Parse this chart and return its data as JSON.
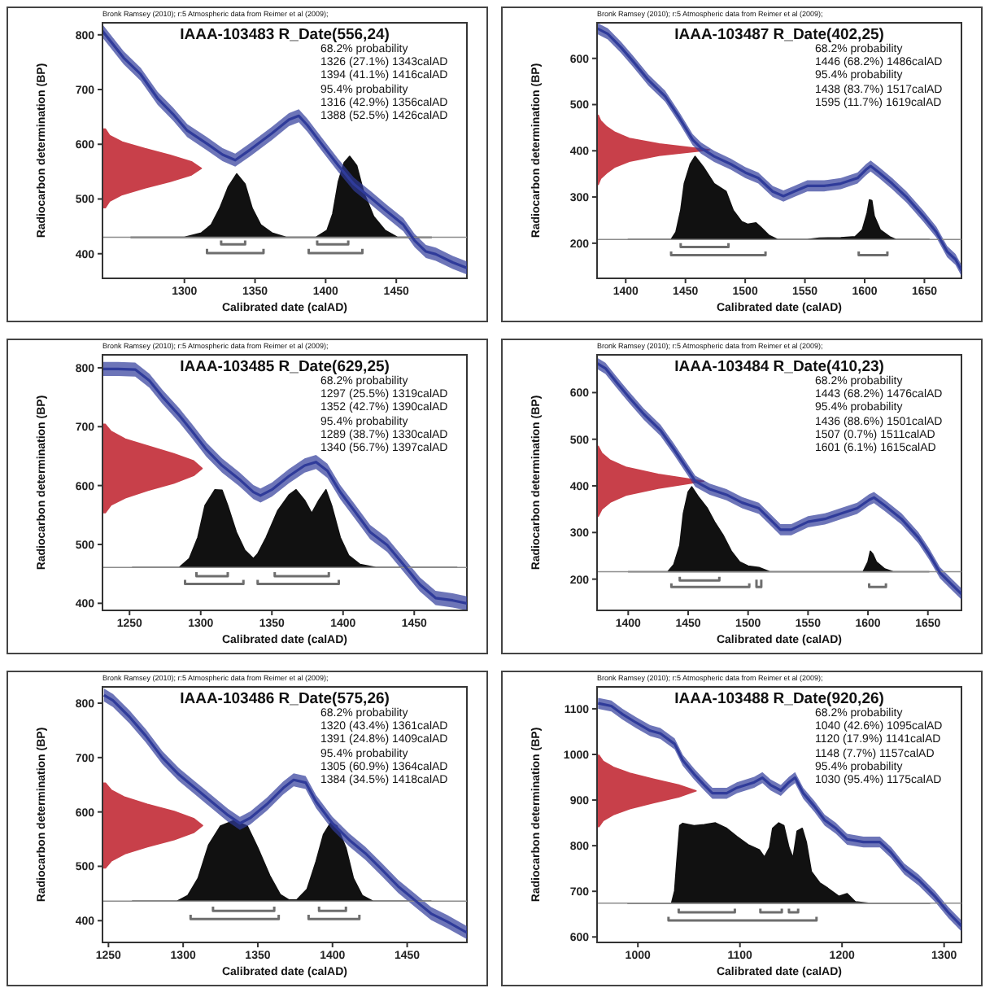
{
  "chart_data": [
    {
      "type": "line",
      "title": "IAAA-103483 R_Date(556,24)",
      "xlabel": "Calibrated date (calAD)",
      "ylabel": "Radiocarbon determination (BP)",
      "xlim": [
        1242,
        1500
      ],
      "xticks": [
        1300,
        1350,
        1400,
        1450
      ],
      "ylim": [
        355,
        822
      ],
      "yticks": [
        400,
        500,
        600,
        700,
        800
      ],
      "annotations": [
        "Bronk Ramsey (2010); r:5 Atmospheric data from Reimer et al (2009);",
        "68.2% probability",
        "1326 (27.1%) 1343calAD",
        "1394 (41.1%) 1416calAD",
        "95.4% probability",
        "1316 (42.9%) 1356calAD",
        "1388 (52.5%) 1426calAD"
      ],
      "ref_lines": [
        {
          "axis": "y",
          "value": 430,
          "color": "#8c8c8c"
        }
      ],
      "series": [
        {
          "type": "area",
          "color": "#c8404a",
          "x": [
            1242,
            1244,
            1247,
            1256,
            1272,
            1290,
            1305,
            1312,
            1305,
            1290,
            1272,
            1256,
            1247,
            1244,
            1242
          ],
          "values": [
            484,
            484,
            496,
            508,
            520,
            532,
            544,
            556,
            568,
            580,
            592,
            604,
            616,
            628,
            628
          ]
        },
        {
          "type": "area",
          "color": "#111111",
          "x": [
            1262,
            1300,
            1312,
            1319,
            1325,
            1331,
            1337,
            1343,
            1348,
            1354,
            1362,
            1372,
            1393,
            1401,
            1405,
            1409,
            1413,
            1417,
            1422,
            1427,
            1434,
            1442,
            1451,
            1475
          ],
          "values": [
            430,
            430,
            438,
            453,
            483,
            522,
            546,
            527,
            483,
            453,
            438,
            430,
            430,
            443,
            473,
            532,
            566,
            578,
            561,
            512,
            468,
            443,
            430,
            430
          ]
        },
        {
          "color": "#2f3b9a",
          "x": [
            1242,
            1257,
            1269,
            1281,
            1292,
            1302,
            1316,
            1327,
            1336,
            1347,
            1362,
            1374,
            1381,
            1387,
            1397,
            1409,
            1420,
            1432,
            1443,
            1455,
            1463,
            1471,
            1478,
            1490,
            1500
          ],
          "values": [
            807,
            758,
            728,
            684,
            655,
            625,
            601,
            581,
            571,
            591,
            620,
            645,
            652,
            635,
            601,
            561,
            527,
            502,
            478,
            453,
            424,
            404,
            399,
            384,
            374
          ],
          "lower": [
            795,
            746,
            716,
            672,
            643,
            613,
            589,
            569,
            559,
            579,
            608,
            633,
            640,
            623,
            589,
            549,
            515,
            490,
            466,
            441,
            412,
            392,
            387,
            372,
            362
          ],
          "upper": [
            819,
            770,
            740,
            696,
            667,
            637,
            613,
            593,
            583,
            603,
            632,
            657,
            664,
            647,
            613,
            573,
            539,
            514,
            490,
            465,
            436,
            416,
            411,
            396,
            386
          ]
        },
        {
          "color": "#6e6e6e",
          "x": [
            1326,
            1326,
            1343,
            1343,
            null,
            1394,
            1394,
            1416,
            1416
          ],
          "values": [
            424,
            417,
            417,
            424,
            null,
            424,
            417,
            417,
            424
          ]
        },
        {
          "color": "#6e6e6e",
          "x": [
            1316,
            1316,
            1356,
            1356,
            null,
            1388,
            1388,
            1426,
            1426
          ],
          "values": [
            409,
            401,
            401,
            409,
            null,
            409,
            401,
            401,
            409
          ]
        }
      ]
    },
    {
      "type": "line",
      "title": "IAAA-103487 R_Date(402,25)",
      "xlabel": "Calibrated date (calAD)",
      "ylabel": "Radiocarbon determination (BP)",
      "xlim": [
        1376,
        1681
      ],
      "xticks": [
        1400,
        1450,
        1500,
        1550,
        1600,
        1650
      ],
      "ylim": [
        124,
        677
      ],
      "yticks": [
        200,
        300,
        400,
        500,
        600
      ],
      "annotations": [
        "Bronk Ramsey (2010); r:5 Atmospheric data from Reimer et al (2009);",
        "68.2% probability",
        "1446 (68.2%) 1486calAD",
        "95.4% probability",
        "1438 (83.7%) 1517calAD",
        "1595 (11.7%) 1619calAD"
      ],
      "ref_lines": [
        {
          "axis": "y",
          "value": 208,
          "color": "#8c8c8c"
        }
      ],
      "series": [
        {
          "type": "area",
          "color": "#c8404a",
          "x": [
            1376,
            1377,
            1379,
            1384,
            1391,
            1403,
            1428,
            1470,
            1428,
            1403,
            1391,
            1384,
            1379,
            1377,
            1376
          ],
          "values": [
            327,
            327,
            340,
            352,
            365,
            377,
            390,
            402,
            415,
            427,
            440,
            452,
            465,
            477,
            477
          ]
        },
        {
          "type": "area",
          "color": "#111111",
          "x": [
            1402,
            1438,
            1442,
            1446,
            1449,
            1454,
            1458,
            1465,
            1474,
            1484,
            1490,
            1497,
            1502,
            1509,
            1513,
            1520,
            1527,
            1552,
            1562,
            1580,
            1592,
            1598,
            1602,
            1604,
            1606,
            1608,
            1613,
            1621,
            1626,
            1654
          ],
          "values": [
            208,
            208,
            224,
            271,
            329,
            371,
            388,
            365,
            329,
            312,
            271,
            247,
            241,
            244,
            235,
            217,
            208,
            208,
            211,
            212,
            214,
            229,
            265,
            294,
            292,
            259,
            229,
            214,
            208,
            208
          ]
        },
        {
          "color": "#2f3b9a",
          "x": [
            1376,
            1385,
            1396,
            1406,
            1419,
            1433,
            1445,
            1456,
            1463,
            1474,
            1488,
            1500,
            1511,
            1523,
            1532,
            1541,
            1552,
            1566,
            1580,
            1594,
            1601,
            1605,
            1612,
            1623,
            1635,
            1649,
            1660,
            1669,
            1676,
            1681
          ],
          "values": [
            665,
            653,
            624,
            594,
            553,
            518,
            471,
            424,
            406,
            388,
            371,
            353,
            341,
            312,
            302,
            312,
            324,
            324,
            329,
            341,
            359,
            367,
            353,
            329,
            300,
            259,
            224,
            182,
            165,
            141
          ],
          "lower": [
            653,
            641,
            612,
            582,
            541,
            506,
            459,
            412,
            394,
            376,
            359,
            341,
            329,
            300,
            290,
            300,
            312,
            312,
            317,
            329,
            347,
            355,
            341,
            317,
            288,
            247,
            212,
            170,
            153,
            129
          ],
          "upper": [
            677,
            665,
            636,
            606,
            565,
            530,
            483,
            436,
            418,
            400,
            383,
            365,
            353,
            324,
            314,
            324,
            336,
            336,
            341,
            353,
            371,
            379,
            365,
            341,
            312,
            271,
            236,
            194,
            177,
            153
          ]
        },
        {
          "color": "#6e6e6e",
          "x": [
            1446,
            1446,
            1486,
            1486
          ],
          "values": [
            200,
            192,
            192,
            200
          ]
        },
        {
          "color": "#6e6e6e",
          "x": [
            1438,
            1438,
            1517,
            1517,
            null,
            1595,
            1595,
            1619,
            1619
          ],
          "values": [
            182,
            174,
            174,
            182,
            null,
            182,
            174,
            174,
            182
          ]
        }
      ]
    },
    {
      "type": "line",
      "title": "IAAA-103485 R_Date(629,25)",
      "xlabel": "Calibrated date (calAD)",
      "ylabel": "Radiocarbon determination (BP)",
      "xlim": [
        1231,
        1487
      ],
      "xticks": [
        1250,
        1300,
        1350,
        1400,
        1450
      ],
      "ylim": [
        388,
        822
      ],
      "yticks": [
        400,
        500,
        600,
        700,
        800
      ],
      "annotations": [
        "Bronk Ramsey (2010); r:5 Atmospheric data from Reimer et al (2009);",
        "68.2% probability",
        "1297 (25.5%) 1319calAD",
        "1352 (42.7%) 1390calAD",
        "95.4% probability",
        "1289 (38.7%) 1330calAD",
        "1340 (56.7%) 1397calAD"
      ],
      "ref_lines": [
        {
          "axis": "y",
          "value": 461,
          "color": "#8c8c8c"
        }
      ],
      "series": [
        {
          "type": "area",
          "color": "#c8404a",
          "x": [
            1231,
            1233,
            1237,
            1247,
            1263,
            1281,
            1295,
            1301,
            1295,
            1281,
            1263,
            1247,
            1237,
            1233,
            1231
          ],
          "values": [
            554,
            554,
            567,
            579,
            592,
            604,
            617,
            629,
            642,
            654,
            667,
            679,
            692,
            704,
            704
          ]
        },
        {
          "type": "area",
          "color": "#111111",
          "x": [
            1252,
            1285,
            1292,
            1298,
            1303,
            1310,
            1315,
            1319,
            1325,
            1331,
            1337,
            1340,
            1346,
            1354,
            1362,
            1367,
            1373,
            1378,
            1383,
            1388,
            1392,
            1398,
            1404,
            1412,
            1423,
            1480
          ],
          "values": [
            461,
            461,
            476,
            512,
            566,
            593,
            592,
            566,
            521,
            490,
            476,
            484,
            512,
            557,
            584,
            593,
            575,
            553,
            575,
            593,
            566,
            512,
            481,
            466,
            461,
            461
          ]
        },
        {
          "color": "#2f3b9a",
          "x": [
            1231,
            1242,
            1254,
            1264,
            1273,
            1285,
            1294,
            1304,
            1315,
            1327,
            1337,
            1342,
            1350,
            1362,
            1373,
            1381,
            1389,
            1398,
            1408,
            1419,
            1431,
            1442,
            1454,
            1465,
            1477,
            1487
          ],
          "values": [
            798,
            798,
            797,
            778,
            751,
            719,
            692,
            661,
            634,
            611,
            589,
            583,
            593,
            616,
            634,
            640,
            625,
            589,
            557,
            521,
            499,
            467,
            432,
            409,
            405,
            400
          ],
          "lower": [
            786,
            786,
            785,
            766,
            739,
            707,
            680,
            649,
            622,
            599,
            577,
            571,
            581,
            604,
            622,
            628,
            613,
            577,
            545,
            509,
            487,
            455,
            420,
            397,
            393,
            388
          ],
          "upper": [
            810,
            810,
            809,
            790,
            763,
            731,
            704,
            673,
            646,
            623,
            601,
            595,
            605,
            628,
            646,
            652,
            637,
            601,
            569,
            533,
            511,
            479,
            444,
            421,
            417,
            412
          ]
        },
        {
          "color": "#6e6e6e",
          "x": [
            1297,
            1297,
            1319,
            1319,
            null,
            1352,
            1352,
            1390,
            1390
          ],
          "values": [
            453,
            446,
            446,
            453,
            null,
            453,
            446,
            446,
            453
          ]
        },
        {
          "color": "#6e6e6e",
          "x": [
            1289,
            1289,
            1330,
            1330,
            null,
            1340,
            1340,
            1397,
            1397
          ],
          "values": [
            440,
            433,
            433,
            440,
            null,
            440,
            433,
            433,
            440
          ]
        }
      ]
    },
    {
      "type": "line",
      "title": "IAAA-103484 R_Date(410,23)",
      "xlabel": "Calibrated date (calAD)",
      "ylabel": "Radiocarbon determination (BP)",
      "xlim": [
        1374,
        1678
      ],
      "xticks": [
        1400,
        1450,
        1500,
        1550,
        1600,
        1650
      ],
      "ylim": [
        133,
        681
      ],
      "yticks": [
        200,
        300,
        400,
        500,
        600
      ],
      "annotations": [
        "Bronk Ramsey (2010); r:5 Atmospheric data from Reimer et al (2009);",
        "68.2% probability",
        "1443 (68.2%) 1476calAD",
        "95.4% probability",
        "1436 (88.6%) 1501calAD",
        "1507 (0.7%) 1511calAD",
        "1601 (6.1%) 1615calAD"
      ],
      "ref_lines": [
        {
          "axis": "y",
          "value": 216,
          "color": "#8c8c8c"
        }
      ],
      "series": [
        {
          "type": "area",
          "color": "#c8404a",
          "x": [
            1374,
            1375,
            1378,
            1385,
            1398,
            1425,
            1463,
            1425,
            1398,
            1385,
            1378,
            1375,
            1374
          ],
          "values": [
            335,
            335,
            350,
            365,
            380,
            395,
            410,
            425,
            440,
            455,
            470,
            485,
            485
          ]
        },
        {
          "type": "area",
          "color": "#111111",
          "x": [
            1400,
            1433,
            1438,
            1443,
            1446,
            1450,
            1453,
            1459,
            1466,
            1472,
            1479,
            1486,
            1493,
            1500,
            1509,
            1518,
            1596,
            1600,
            1602,
            1604,
            1607,
            1614,
            1621,
            1651
          ],
          "values": [
            216,
            216,
            231,
            272,
            341,
            387,
            398,
            375,
            352,
            323,
            295,
            260,
            237,
            228,
            225,
            216,
            216,
            237,
            260,
            254,
            237,
            222,
            216,
            216
          ]
        },
        {
          "color": "#2f3b9a",
          "x": [
            1374,
            1381,
            1390,
            1401,
            1413,
            1427,
            1438,
            1450,
            1456,
            1468,
            1482,
            1495,
            1509,
            1518,
            1527,
            1536,
            1550,
            1564,
            1578,
            1591,
            1601,
            1605,
            1614,
            1628,
            1642,
            1651,
            1660,
            1669,
            1678
          ],
          "values": [
            663,
            652,
            623,
            589,
            554,
            519,
            479,
            433,
            410,
            393,
            381,
            364,
            352,
            329,
            306,
            306,
            323,
            329,
            341,
            352,
            370,
            375,
            358,
            329,
            289,
            254,
            214,
            191,
            168
          ],
          "lower": [
            651,
            640,
            611,
            577,
            542,
            507,
            467,
            421,
            398,
            381,
            369,
            352,
            340,
            317,
            294,
            294,
            311,
            317,
            329,
            340,
            358,
            363,
            346,
            317,
            277,
            242,
            202,
            179,
            156
          ],
          "upper": [
            675,
            664,
            635,
            601,
            566,
            531,
            491,
            445,
            422,
            405,
            393,
            376,
            364,
            341,
            318,
            318,
            335,
            341,
            353,
            364,
            382,
            387,
            370,
            341,
            301,
            266,
            226,
            203,
            180
          ]
        },
        {
          "color": "#6e6e6e",
          "x": [
            1443,
            1443,
            1476,
            1476
          ],
          "values": [
            205,
            197,
            197,
            205
          ]
        },
        {
          "color": "#6e6e6e",
          "x": [
            1436,
            1436,
            1501,
            1501,
            null,
            1507,
            1507,
            1511,
            1511,
            null,
            1601,
            1601,
            1615,
            1615
          ],
          "values": [
            191,
            183,
            183,
            191,
            null,
            199,
            183,
            183,
            199,
            null,
            191,
            183,
            183,
            191
          ]
        }
      ]
    },
    {
      "type": "line",
      "title": "IAAA-103486 R_Date(575,26)",
      "xlabel": "Calibrated date (calAD)",
      "ylabel": "Radiocarbon determination (BP)",
      "xlim": [
        1246,
        1490
      ],
      "xticks": [
        1250,
        1300,
        1350,
        1400,
        1450
      ],
      "ylim": [
        360,
        830
      ],
      "yticks": [
        400,
        500,
        600,
        700,
        800
      ],
      "annotations": [
        "Bronk Ramsey (2010); r:5 Atmospheric data from Reimer et al (2009);",
        "68.2% probability",
        "1320 (43.4%) 1361calAD",
        "1391 (24.8%) 1409calAD",
        "95.4% probability",
        "1305 (60.9%) 1364calAD",
        "1384 (34.5%) 1418calAD"
      ],
      "ref_lines": [
        {
          "axis": "y",
          "value": 436,
          "color": "#8c8c8c"
        }
      ],
      "series": [
        {
          "type": "area",
          "color": "#c8404a",
          "x": [
            1246,
            1248,
            1252,
            1261,
            1276,
            1294,
            1307,
            1313,
            1307,
            1294,
            1276,
            1261,
            1252,
            1248,
            1246
          ],
          "values": [
            497,
            497,
            510,
            523,
            536,
            549,
            562,
            575,
            588,
            601,
            614,
            627,
            640,
            653,
            653
          ]
        },
        {
          "type": "area",
          "color": "#111111",
          "x": [
            1266,
            1296,
            1303,
            1310,
            1317,
            1325,
            1334,
            1343,
            1350,
            1358,
            1365,
            1371,
            1376,
            1383,
            1389,
            1394,
            1399,
            1403,
            1409,
            1414,
            1420,
            1427,
            1466
          ],
          "values": [
            436,
            436,
            446,
            478,
            539,
            574,
            584,
            574,
            534,
            483,
            448,
            438,
            438,
            458,
            509,
            559,
            581,
            574,
            534,
            478,
            446,
            436,
            436
          ]
        },
        {
          "color": "#2f3b9a",
          "x": [
            1247,
            1253,
            1264,
            1275,
            1286,
            1297,
            1308,
            1319,
            1330,
            1338,
            1345,
            1356,
            1367,
            1374,
            1382,
            1389,
            1400,
            1411,
            1422,
            1433,
            1444,
            1455,
            1466,
            1477,
            1490
          ],
          "values": [
            815,
            805,
            775,
            740,
            700,
            669,
            644,
            619,
            594,
            579,
            589,
            614,
            644,
            659,
            654,
            619,
            579,
            549,
            524,
            494,
            463,
            438,
            413,
            398,
            378
          ],
          "lower": [
            803,
            793,
            763,
            728,
            688,
            657,
            632,
            607,
            582,
            567,
            577,
            602,
            632,
            647,
            642,
            607,
            567,
            537,
            512,
            482,
            451,
            426,
            401,
            386,
            366
          ],
          "upper": [
            827,
            817,
            787,
            752,
            712,
            681,
            656,
            631,
            606,
            591,
            601,
            626,
            656,
            671,
            666,
            631,
            591,
            561,
            536,
            506,
            475,
            450,
            425,
            410,
            390
          ]
        },
        {
          "color": "#6e6e6e",
          "x": [
            1320,
            1320,
            1361,
            1361,
            null,
            1391,
            1391,
            1409,
            1409
          ],
          "values": [
            426,
            418,
            418,
            426,
            null,
            426,
            418,
            418,
            426
          ]
        },
        {
          "color": "#6e6e6e",
          "x": [
            1305,
            1305,
            1364,
            1364,
            null,
            1384,
            1384,
            1418,
            1418
          ],
          "values": [
            411,
            403,
            403,
            411,
            null,
            411,
            403,
            403,
            411
          ]
        }
      ]
    },
    {
      "type": "line",
      "title": "IAAA-103488 R_Date(920,26)",
      "xlabel": "Calibrated date (calAD)",
      "ylabel": "Radiocarbon determination (BP)",
      "xlim": [
        960,
        1317
      ],
      "xticks": [
        1000,
        1100,
        1200,
        1300
      ],
      "ylim": [
        588,
        1148
      ],
      "yticks": [
        600,
        700,
        800,
        900,
        1000,
        1100
      ],
      "annotations": [
        "Bronk Ramsey (2010); r:5 Atmospheric data from Reimer et al (2009);",
        "68.2% probability",
        "1040 (42.6%) 1095calAD",
        "1120 (17.9%) 1141calAD",
        "1148 (7.7%) 1157calAD",
        "95.4% probability",
        "1030 (95.4%) 1175calAD"
      ],
      "ref_lines": [
        {
          "axis": "y",
          "value": 674,
          "color": "#8c8c8c"
        }
      ],
      "series": [
        {
          "type": "area",
          "color": "#c8404a",
          "x": [
            960,
            962,
            966,
            976,
            992,
            1015,
            1040,
            1057,
            1040,
            1015,
            992,
            976,
            966,
            962,
            960
          ],
          "values": [
            842,
            842,
            855,
            868,
            881,
            894,
            907,
            920,
            933,
            946,
            959,
            972,
            985,
            998,
            998
          ]
        },
        {
          "type": "area",
          "color": "#111111",
          "x": [
            990,
            1033,
            1036,
            1038,
            1041,
            1044,
            1055,
            1065,
            1076,
            1087,
            1097,
            1108,
            1119,
            1124,
            1129,
            1132,
            1138,
            1143,
            1148,
            1152,
            1156,
            1161,
            1165,
            1170,
            1178,
            1186,
            1197,
            1205,
            1213,
            1226,
            1286
          ],
          "values": [
            674,
            674,
            701,
            761,
            844,
            849,
            844,
            846,
            850,
            838,
            820,
            802,
            791,
            775,
            796,
            838,
            850,
            844,
            796,
            773,
            832,
            838,
            808,
            743,
            719,
            707,
            689,
            695,
            677,
            674,
            674
          ]
        },
        {
          "color": "#2f3b9a",
          "x": [
            961,
            974,
            985,
            998,
            1012,
            1022,
            1036,
            1044,
            1055,
            1065,
            1073,
            1087,
            1097,
            1114,
            1122,
            1130,
            1140,
            1148,
            1154,
            1162,
            1173,
            1183,
            1194,
            1205,
            1221,
            1237,
            1248,
            1261,
            1275,
            1291,
            1304,
            1317
          ],
          "values": [
            1112,
            1106,
            1088,
            1070,
            1052,
            1046,
            1023,
            987,
            957,
            933,
            915,
            915,
            927,
            939,
            949,
            933,
            921,
            939,
            949,
            915,
            886,
            856,
            838,
            814,
            808,
            808,
            785,
            749,
            725,
            689,
            654,
            624
          ],
          "lower": [
            1100,
            1094,
            1076,
            1058,
            1040,
            1034,
            1011,
            975,
            945,
            921,
            903,
            903,
            915,
            927,
            937,
            921,
            909,
            927,
            937,
            903,
            874,
            844,
            826,
            802,
            796,
            796,
            773,
            737,
            713,
            677,
            642,
            612
          ],
          "upper": [
            1124,
            1118,
            1100,
            1082,
            1064,
            1058,
            1035,
            999,
            969,
            945,
            927,
            927,
            939,
            951,
            961,
            945,
            933,
            951,
            961,
            927,
            898,
            868,
            850,
            826,
            820,
            820,
            797,
            761,
            737,
            701,
            666,
            636
          ]
        },
        {
          "color": "#6e6e6e",
          "x": [
            1040,
            1040,
            1095,
            1095,
            null,
            1120,
            1120,
            1141,
            1141,
            null,
            1148,
            1148,
            1157,
            1157
          ],
          "values": [
            662,
            654,
            654,
            662,
            null,
            662,
            654,
            654,
            662,
            null,
            662,
            654,
            654,
            662
          ]
        },
        {
          "color": "#6e6e6e",
          "x": [
            1030,
            1030,
            1175,
            1175
          ],
          "values": [
            644,
            636,
            636,
            644
          ]
        }
      ]
    }
  ]
}
